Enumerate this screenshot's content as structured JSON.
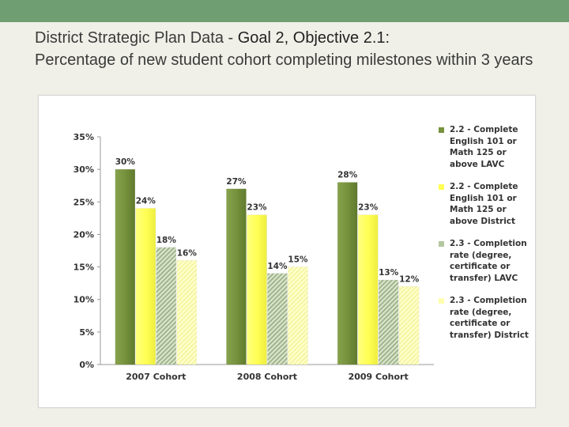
{
  "title": {
    "line_plain": "District Strategic Plan Data - ",
    "line_strong": "Goal 2, Objective 2.1:",
    "subtitle": "Percentage of new student cohort completing milestones within 3 years"
  },
  "chart_data": {
    "type": "bar",
    "categories": [
      "2007 Cohort",
      "2008 Cohort",
      "2009 Cohort"
    ],
    "series": [
      {
        "name": "2.2 - Complete English 101 or Math 125 or above LAVC",
        "values": [
          30,
          27,
          28
        ],
        "labels": [
          "30%",
          "27%",
          "28%"
        ],
        "color": "#76923c",
        "pattern": "solid"
      },
      {
        "name": "2.2 - Complete English 101 or Math 125 or above District",
        "values": [
          24,
          23,
          23
        ],
        "labels": [
          "24%",
          "23%",
          "23%"
        ],
        "color": "#ffff66",
        "pattern": "solid"
      },
      {
        "name": "2.3 - Completion rate (degree, certificate or transfer) LAVC",
        "values": [
          18,
          14,
          13
        ],
        "labels": [
          "18%",
          "14%",
          "13%"
        ],
        "color": "#b4c8a0",
        "pattern": "hatch"
      },
      {
        "name": "2.3 - Completion rate (degree, certificate or transfer) District",
        "values": [
          16,
          15,
          12
        ],
        "labels": [
          "16%",
          "15%",
          "12%"
        ],
        "color": "#ffffb0",
        "pattern": "light"
      }
    ],
    "y_ticks": [
      "0%",
      "5%",
      "10%",
      "15%",
      "20%",
      "25%",
      "30%",
      "35%"
    ],
    "ylim": [
      0,
      35
    ],
    "grid": false,
    "legend_position": "right"
  }
}
